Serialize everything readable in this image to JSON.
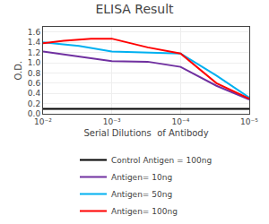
{
  "chart_data": {
    "type": "line",
    "title": "ELISA Result",
    "xlabel": "Serial Dilutions  of Antibody",
    "ylabel": "O.D.",
    "log": "x",
    "xlim": [
      0.01,
      1e-05
    ],
    "xticks": [
      {
        "value": 0.01,
        "label": "10⁻²"
      },
      {
        "value": 0.001,
        "label": "10⁻³"
      },
      {
        "value": 0.0001,
        "label": "10⁻⁴"
      },
      {
        "value": 1e-05,
        "label": "10⁻⁵"
      }
    ],
    "ylim": [
      0,
      1.7
    ],
    "yticks": [
      {
        "value": 0,
        "label": "0.0"
      },
      0.2,
      0.4,
      0.6,
      0.8,
      {
        "value": 1.0,
        "label": "1.0"
      },
      1.2,
      1.4,
      1.6
    ],
    "grid": true,
    "legend": "bottom",
    "series": [
      {
        "name": "Control Antigen = 100ng",
        "color": "black",
        "x": [
          0.01,
          0.003,
          0.001,
          0.0003,
          0.0001,
          3e-05,
          1e-05
        ],
        "values": [
          0.1,
          0.1,
          0.1,
          0.1,
          0.1,
          0.1,
          0.1
        ]
      },
      {
        "name": "Antigen= 10ng",
        "color": "#7030A0",
        "x": [
          0.01,
          0.003,
          0.001,
          0.0003,
          0.0001,
          3e-05,
          1e-05
        ],
        "values": [
          1.22,
          1.12,
          1.03,
          1.02,
          0.92,
          0.55,
          0.28
        ]
      },
      {
        "name": "Antigen= 50ng",
        "color": "#00B0F0",
        "x": [
          0.01,
          0.003,
          0.001,
          0.0003,
          0.0001,
          3e-05,
          1e-05
        ],
        "values": [
          1.4,
          1.33,
          1.22,
          1.2,
          1.18,
          0.75,
          0.32
        ]
      },
      {
        "name": "Antigen= 100ng",
        "color": "#FF0000",
        "x": [
          0.01,
          0.005,
          0.002,
          0.001,
          0.0003,
          0.0001,
          3e-05,
          1e-05
        ],
        "values": [
          1.38,
          1.43,
          1.47,
          1.47,
          1.3,
          1.18,
          0.6,
          0.3
        ]
      }
    ]
  }
}
